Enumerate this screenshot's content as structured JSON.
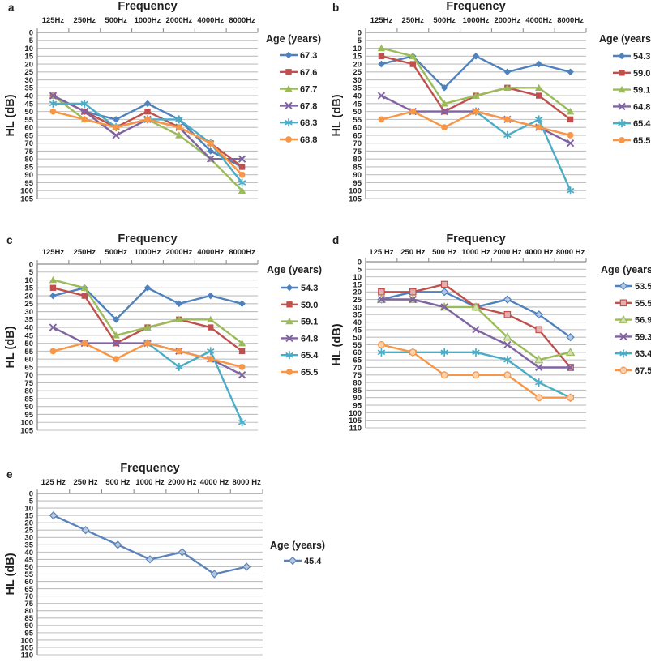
{
  "page": {
    "background": "#ffffff"
  },
  "chart_data": [
    {
      "panel": "a",
      "type": "line",
      "title": "Frequency",
      "ylabel": "HL (dB)",
      "legend_title": "Age (years)",
      "legend_position": "right",
      "grid": true,
      "y_inverted": true,
      "ylim": [
        0,
        105
      ],
      "ytick_step": 5,
      "marker_style": "solid",
      "categories": [
        "125Hz",
        "250Hz",
        "500Hz",
        "1000Hz",
        "2000Hz",
        "4000Hz",
        "8000Hz"
      ],
      "series": [
        {
          "name": "67.3",
          "color": "#4F81BD",
          "marker": "diamond",
          "values": [
            40,
            50,
            55,
            45,
            55,
            75,
            85
          ]
        },
        {
          "name": "67.6",
          "color": "#C0504D",
          "marker": "square",
          "values": [
            40,
            50,
            60,
            50,
            60,
            70,
            85
          ]
        },
        {
          "name": "67.7",
          "color": "#9BBB59",
          "marker": "triangle",
          "values": [
            40,
            55,
            60,
            55,
            65,
            80,
            100
          ]
        },
        {
          "name": "67.8",
          "color": "#8064A2",
          "marker": "x",
          "values": [
            40,
            50,
            65,
            55,
            60,
            80,
            80
          ]
        },
        {
          "name": "68.3",
          "color": "#4BACC6",
          "marker": "star",
          "values": [
            45,
            45,
            60,
            55,
            55,
            70,
            95
          ]
        },
        {
          "name": "68.8",
          "color": "#F79646",
          "marker": "circle",
          "values": [
            50,
            55,
            60,
            55,
            60,
            70,
            90
          ]
        }
      ]
    },
    {
      "panel": "b",
      "type": "line",
      "title": "Frequency",
      "ylabel": "HL (dB)",
      "legend_title": "Age (years)",
      "legend_position": "right",
      "grid": true,
      "y_inverted": true,
      "ylim": [
        0,
        105
      ],
      "ytick_step": 5,
      "marker_style": "solid",
      "categories": [
        "125Hz",
        "250Hz",
        "500Hz",
        "1000Hz",
        "2000Hz",
        "4000Hz",
        "8000Hz"
      ],
      "series": [
        {
          "name": "54.3",
          "color": "#4F81BD",
          "marker": "diamond",
          "values": [
            20,
            15,
            35,
            15,
            25,
            20,
            25
          ]
        },
        {
          "name": "59.0",
          "color": "#C0504D",
          "marker": "square",
          "values": [
            15,
            20,
            50,
            40,
            35,
            40,
            55
          ]
        },
        {
          "name": "59.1",
          "color": "#9BBB59",
          "marker": "triangle",
          "values": [
            10,
            15,
            45,
            40,
            35,
            35,
            50
          ]
        },
        {
          "name": "64.8",
          "color": "#8064A2",
          "marker": "x",
          "values": [
            40,
            50,
            50,
            50,
            55,
            60,
            70
          ]
        },
        {
          "name": "65.4",
          "color": "#4BACC6",
          "marker": "star",
          "values": [
            null,
            null,
            null,
            50,
            65,
            55,
            100
          ]
        },
        {
          "name": "65.5",
          "color": "#F79646",
          "marker": "circle",
          "values": [
            55,
            50,
            60,
            50,
            55,
            60,
            65
          ]
        }
      ]
    },
    {
      "panel": "c",
      "type": "line",
      "title": "Frequency",
      "ylabel": "HL (dB)",
      "legend_title": "Age (years)",
      "legend_position": "right",
      "grid": true,
      "y_inverted": true,
      "ylim": [
        0,
        105
      ],
      "ytick_step": 5,
      "marker_style": "solid",
      "categories": [
        "125Hz",
        "250Hz",
        "500Hz",
        "1000Hz",
        "2000Hz",
        "4000Hz",
        "8000Hz"
      ],
      "series": [
        {
          "name": "54.3",
          "color": "#4F81BD",
          "marker": "diamond",
          "values": [
            20,
            15,
            35,
            15,
            25,
            20,
            25
          ]
        },
        {
          "name": "59.0",
          "color": "#C0504D",
          "marker": "square",
          "values": [
            15,
            20,
            50,
            40,
            35,
            40,
            55
          ]
        },
        {
          "name": "59.1",
          "color": "#9BBB59",
          "marker": "triangle",
          "values": [
            10,
            15,
            45,
            40,
            35,
            35,
            50
          ]
        },
        {
          "name": "64.8",
          "color": "#8064A2",
          "marker": "x",
          "values": [
            40,
            50,
            50,
            50,
            55,
            60,
            70
          ]
        },
        {
          "name": "65.4",
          "color": "#4BACC6",
          "marker": "star",
          "values": [
            null,
            null,
            null,
            50,
            65,
            55,
            100
          ]
        },
        {
          "name": "65.5",
          "color": "#F79646",
          "marker": "circle",
          "values": [
            55,
            50,
            60,
            50,
            55,
            60,
            65
          ]
        }
      ]
    },
    {
      "panel": "d",
      "type": "line",
      "title": "Frequency",
      "ylabel": "HL (dB)",
      "legend_title": "Age (years)",
      "legend_position": "right",
      "grid": true,
      "y_inverted": true,
      "ylim": [
        0,
        110
      ],
      "ytick_step": 5,
      "marker_style": "light",
      "categories": [
        "125 Hz",
        "250 Hz",
        "500 Hz",
        "1000 Hz",
        "2000 Hz",
        "4000 Hz",
        "8000 Hz"
      ],
      "series": [
        {
          "name": "53.5",
          "color": "#4F81BD",
          "marker": "diamond",
          "values": [
            25,
            20,
            20,
            30,
            25,
            35,
            50
          ]
        },
        {
          "name": "55.5",
          "color": "#C0504D",
          "marker": "square",
          "values": [
            20,
            20,
            15,
            30,
            35,
            45,
            70
          ]
        },
        {
          "name": "56.9",
          "color": "#9BBB59",
          "marker": "triangle",
          "values": [
            25,
            25,
            30,
            30,
            50,
            65,
            60
          ]
        },
        {
          "name": "59.3",
          "color": "#8064A2",
          "marker": "x",
          "values": [
            25,
            25,
            30,
            45,
            55,
            70,
            70
          ]
        },
        {
          "name": "63.4",
          "color": "#4BACC6",
          "marker": "star",
          "values": [
            60,
            60,
            60,
            60,
            65,
            80,
            90
          ]
        },
        {
          "name": "67.5",
          "color": "#F79646",
          "marker": "circle",
          "values": [
            55,
            60,
            75,
            75,
            75,
            90,
            90
          ]
        }
      ]
    },
    {
      "panel": "e",
      "type": "line",
      "title": "Frequency",
      "ylabel": "HL (dB)",
      "legend_title": "Age (years)",
      "legend_position": "right",
      "grid": true,
      "y_inverted": true,
      "ylim": [
        0,
        110
      ],
      "ytick_step": 5,
      "marker_style": "light",
      "categories": [
        "125 Hz",
        "250 Hz",
        "500 Hz",
        "1000 Hz",
        "2000 Hz",
        "4000 Hz",
        "8000 Hz"
      ],
      "series": [
        {
          "name": "45.4",
          "color": "#5B83B8",
          "marker": "diamond",
          "values": [
            15,
            25,
            35,
            45,
            40,
            55,
            50
          ]
        }
      ]
    }
  ]
}
